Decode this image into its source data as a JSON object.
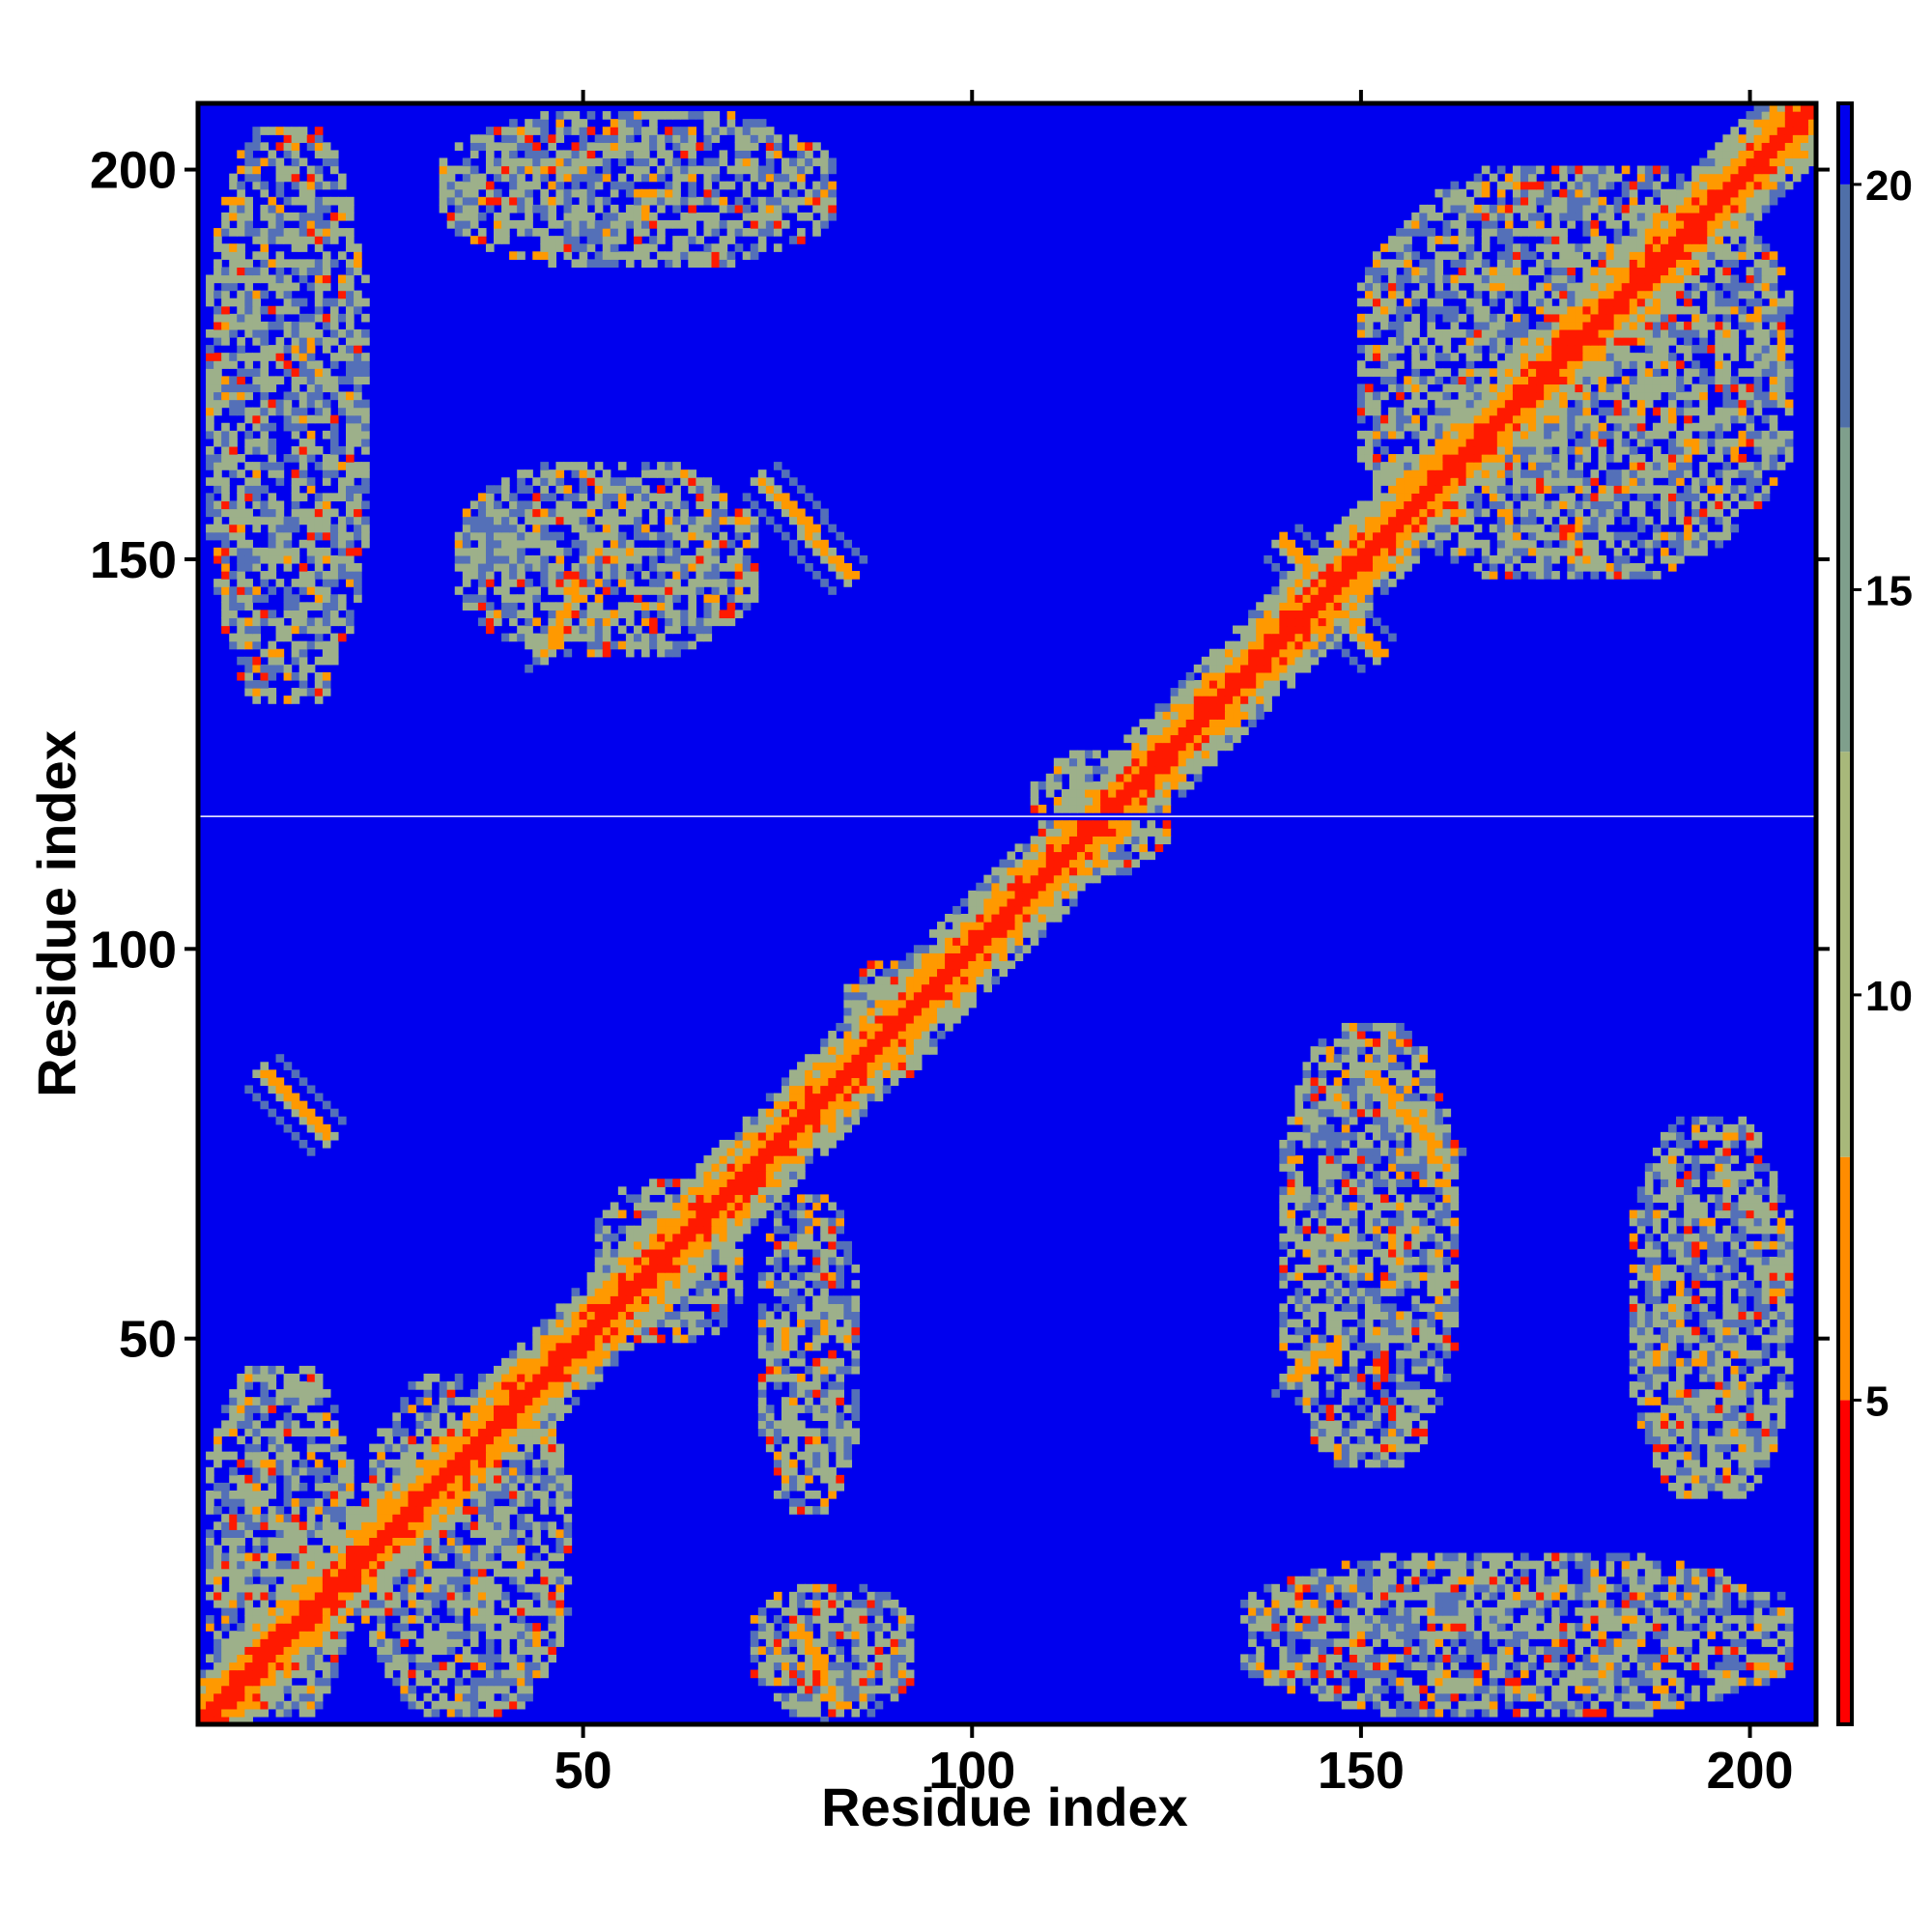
{
  "chart_data": {
    "type": "heatmap",
    "title": "",
    "xlabel": "Residue index",
    "ylabel": "Residue index",
    "xlim": [
      1,
      208
    ],
    "ylim": [
      1,
      208
    ],
    "xticks": [
      50,
      100,
      150,
      200
    ],
    "yticks": [
      50,
      100,
      150,
      200
    ],
    "colorbar": {
      "ticks": [
        5,
        10,
        15,
        20
      ],
      "range": [
        1,
        21
      ],
      "segments": [
        {
          "from": 1,
          "to": 5,
          "color": "#ff0000"
        },
        {
          "from": 5,
          "to": 8,
          "color": "#ff8c00"
        },
        {
          "from": 8,
          "to": 13,
          "color": "#a8b87a"
        },
        {
          "from": 13,
          "to": 17,
          "color": "#7f9f8c"
        },
        {
          "from": 17,
          "to": 20,
          "color": "#4f6fa8"
        },
        {
          "from": 20,
          "to": 21,
          "color": "#0000ee"
        }
      ]
    },
    "background_value": 21,
    "colors": {
      "far": "#0000ee",
      "mid_far": "#5470b8",
      "mid": "#9db08a",
      "near": "#ff9900",
      "contact": "#ff1a00"
    },
    "features": {
      "diagonal": {
        "from": 1,
        "to": 208
      },
      "beta_contacts": [
        {
          "x": [
            9,
            17
          ],
          "y": [
            76,
            84
          ],
          "orientation": "anti"
        },
        {
          "x": [
            78,
            83
          ],
          "y": [
            3,
            12
          ],
          "orientation": "anti"
        },
        {
          "x": [
            73,
            84
          ],
          "y": [
            148,
            160
          ],
          "orientation": "anti"
        },
        {
          "x": [
            151,
            161
          ],
          "y": [
            72,
            84
          ],
          "orientation": "anti"
        },
        {
          "x": [
            140,
            152
          ],
          "y": [
            138,
            152
          ],
          "orientation": "anti"
        },
        {
          "x": [
            45,
            49
          ],
          "y": [
            138,
            146
          ],
          "orientation": "parallel"
        },
        {
          "x": [
            141,
            147
          ],
          "y": [
            45,
            49
          ],
          "orientation": "parallel"
        }
      ],
      "contact_regions": [
        {
          "x": [
            2,
            20
          ],
          "y": [
            2,
            46
          ]
        },
        {
          "x": [
            22,
            48
          ],
          "y": [
            2,
            45
          ]
        },
        {
          "x": [
            52,
            70
          ],
          "y": [
            50,
            70
          ]
        },
        {
          "x": [
            73,
            85
          ],
          "y": [
            28,
            68
          ]
        },
        {
          "x": [
            72,
            92
          ],
          "y": [
            2,
            18
          ]
        },
        {
          "x": [
            2,
            22
          ],
          "y": [
            132,
            205
          ]
        },
        {
          "x": [
            34,
            72
          ],
          "y": [
            138,
            162
          ]
        },
        {
          "x": [
            32,
            82
          ],
          "y": [
            188,
            207
          ]
        },
        {
          "x": [
            135,
            205
          ],
          "y": [
            2,
            22
          ]
        },
        {
          "x": [
            140,
            162
          ],
          "y": [
            34,
            90
          ]
        },
        {
          "x": [
            185,
            205
          ],
          "y": [
            30,
            78
          ]
        },
        {
          "x": [
            150,
            205
          ],
          "y": [
            148,
            200
          ]
        },
        {
          "x": [
            84,
            95
          ],
          "y": [
            84,
            98
          ]
        },
        {
          "x": [
            108,
            125
          ],
          "y": [
            110,
            125
          ]
        }
      ],
      "gap_row": 117
    }
  }
}
